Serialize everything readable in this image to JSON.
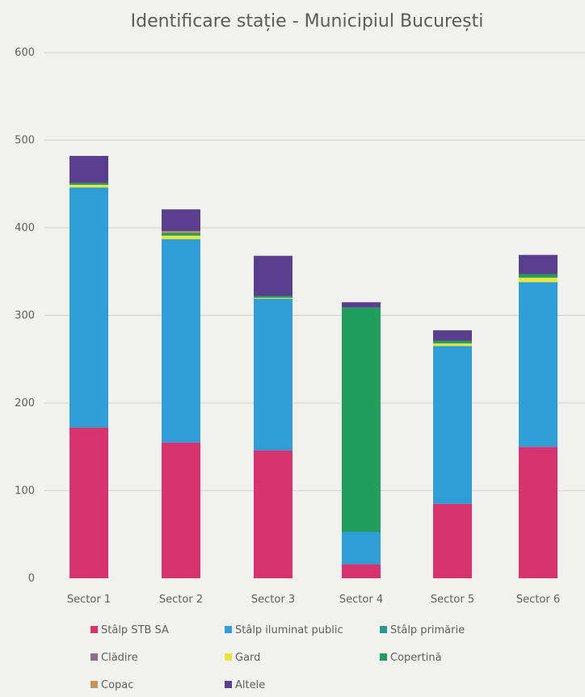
{
  "chart_data": {
    "type": "bar",
    "stacked": true,
    "title": "Identificare stație - Municipiul București",
    "xlabel": "",
    "ylabel": "",
    "ylim": [
      0,
      600
    ],
    "yticks": [
      0,
      100,
      200,
      300,
      400,
      500,
      600
    ],
    "grid": true,
    "legend_position": "bottom",
    "categories": [
      "Sector 1",
      "Sector 2",
      "Sector 3",
      "Sector 4",
      "Sector 5",
      "Sector 6"
    ],
    "series": [
      {
        "name": "Stâlp STB SA",
        "color": "#d6336f",
        "values": [
          172,
          155,
          146,
          16,
          85,
          150
        ]
      },
      {
        "name": "Stâlp iluminat public",
        "color": "#2f9ed6",
        "values": [
          274,
          232,
          173,
          37,
          180,
          188
        ]
      },
      {
        "name": "Stâlp primărie",
        "color": "#2a9a8a",
        "values": [
          0,
          0,
          0,
          0,
          0,
          0
        ]
      },
      {
        "name": "Clădire",
        "color": "#8a6e8c",
        "values": [
          0,
          0,
          0,
          0,
          0,
          0
        ]
      },
      {
        "name": "Gard",
        "color": "#e9e63a",
        "values": [
          3,
          4,
          1,
          0,
          3,
          5
        ]
      },
      {
        "name": "Copertină",
        "color": "#1f9e5c",
        "values": [
          2,
          3,
          2,
          256,
          3,
          4
        ]
      },
      {
        "name": "Copac",
        "color": "#c4955a",
        "values": [
          0,
          2,
          0,
          0,
          0,
          0
        ]
      },
      {
        "name": "Altele",
        "color": "#5a3f8e",
        "values": [
          31,
          25,
          46,
          6,
          12,
          22
        ]
      }
    ]
  }
}
